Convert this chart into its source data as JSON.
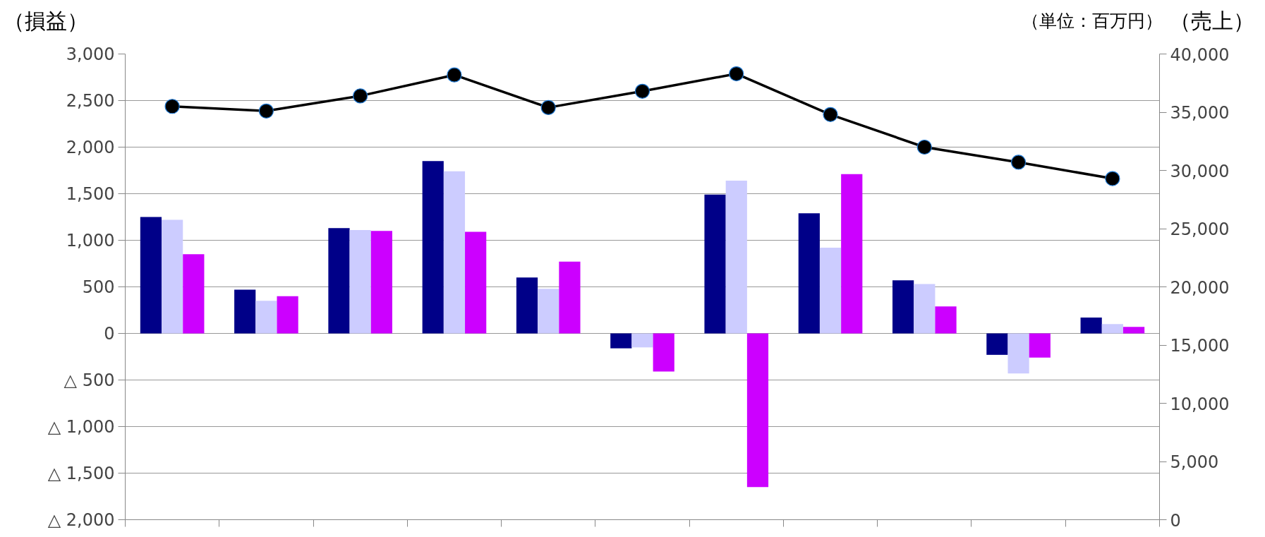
{
  "chart_data": {
    "type": "bar",
    "ylabel": "（損益）",
    "y2label": "（売上）",
    "annotations": [
      "（単位：百万円）"
    ],
    "categories": [
      null,
      null,
      null,
      null,
      null,
      null,
      null,
      null,
      null,
      null,
      null
    ],
    "series": [
      {
        "color": "#000088",
        "values": [
          1250,
          470,
          1130,
          1850,
          600,
          -160,
          1490,
          1290,
          570,
          -230,
          170
        ]
      },
      {
        "color": "#ccccff",
        "values": [
          1220,
          350,
          1110,
          1740,
          480,
          -150,
          1640,
          920,
          530,
          -430,
          100
        ]
      },
      {
        "color": "#cc00ff",
        "values": [
          850,
          400,
          1100,
          1090,
          770,
          -410,
          -1650,
          1710,
          290,
          -260,
          70
        ]
      },
      {
        "type": "line",
        "axis": "y2",
        "color": "#000000",
        "values": [
          35500,
          35100,
          36400,
          38200,
          35400,
          36800,
          38300,
          34800,
          32000,
          30700,
          29300
        ]
      }
    ],
    "marker": "circle",
    "ylim": [
      -2000,
      3000
    ],
    "yticks": [
      {
        "value": -2000,
        "label": "△ 2,000"
      },
      {
        "value": -1500,
        "label": "△ 1,500"
      },
      {
        "value": -1000,
        "label": "△ 1,000"
      },
      {
        "value": -500,
        "label": "△ 500"
      },
      0,
      {
        "value": 500,
        "label": "500"
      },
      {
        "value": 1000,
        "label": "1,000"
      },
      {
        "value": 1500,
        "label": "1,500"
      },
      {
        "value": 2000,
        "label": "2,000"
      },
      {
        "value": 2500,
        "label": "2,500"
      },
      {
        "value": 3000,
        "label": "3,000"
      }
    ],
    "y2lim": [
      0,
      40000
    ],
    "y2ticks": [
      0,
      {
        "value": 5000,
        "label": "5,000"
      },
      {
        "value": 10000,
        "label": "10,000"
      },
      {
        "value": 15000,
        "label": "15,000"
      },
      {
        "value": 20000,
        "label": "20,000"
      },
      {
        "value": 25000,
        "label": "25,000"
      },
      {
        "value": 30000,
        "label": "30,000"
      },
      {
        "value": 35000,
        "label": "35,000"
      },
      {
        "value": 40000,
        "label": "40,000"
      }
    ],
    "grid": "y"
  }
}
